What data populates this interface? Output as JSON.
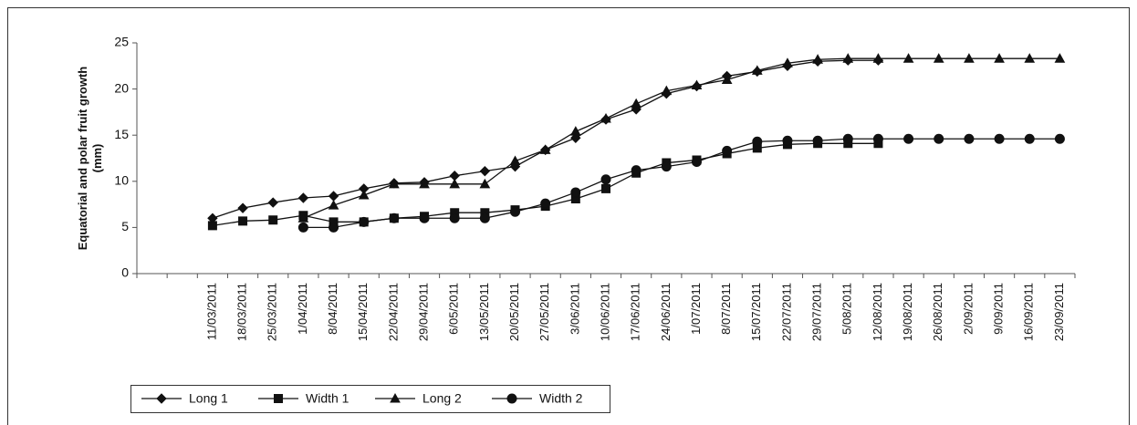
{
  "chart_data": {
    "type": "line",
    "y_label": "Equatorial and polar fruit growth (mm)",
    "categories": [
      null,
      null,
      "11/03/2011",
      "18/03/2011",
      "25/03/2011",
      "1/04/2011",
      "8/04/2011",
      "15/04/2011",
      "22/04/2011",
      "29/04/2011",
      "6/05/2011",
      "13/05/2011",
      "20/05/2011",
      "27/05/2011",
      "3/06/2011",
      "10/06/2011",
      "17/06/2011",
      "24/06/2011",
      "1/07/2011",
      "8/07/2011",
      "15/07/2011",
      "22/07/2011",
      "29/07/2011",
      "5/08/2011",
      "12/08/2011",
      "19/08/2011",
      "26/08/2011",
      "2/09/2011",
      "9/09/2011",
      "16/09/2011",
      "23/09/2011"
    ],
    "series": [
      {
        "name": "Long 1",
        "color": "#111111",
        "marker": "diamond",
        "values": [
          null,
          null,
          6,
          7.1,
          7.7,
          8.2,
          8.4,
          9.2,
          9.8,
          9.9,
          10.6,
          11.1,
          11.6,
          13.4,
          14.7,
          16.7,
          17.8,
          19.5,
          20.3,
          21.4,
          21.9,
          22.5,
          23.0,
          23.1,
          23.1,
          null,
          null,
          null,
          null,
          null,
          null
        ]
      },
      {
        "name": "Width 1",
        "color": "#111111",
        "marker": "square",
        "values": [
          null,
          null,
          5.2,
          5.7,
          5.8,
          6.3,
          5.6,
          5.6,
          6.0,
          6.2,
          6.6,
          6.6,
          6.9,
          7.3,
          8.1,
          9.2,
          10.9,
          12.0,
          12.3,
          13.0,
          13.6,
          14.0,
          14.1,
          14.1,
          14.1,
          null,
          null,
          null,
          null,
          null,
          null
        ]
      },
      {
        "name": "Long 2",
        "color": "#111111",
        "marker": "triangle",
        "values": [
          null,
          null,
          null,
          null,
          null,
          6.0,
          7.4,
          8.5,
          9.7,
          9.7,
          9.7,
          9.7,
          12.2,
          13.4,
          15.4,
          16.8,
          18.4,
          19.8,
          20.4,
          21.0,
          22.0,
          22.8,
          23.2,
          23.3,
          23.3,
          23.3,
          23.3,
          23.3,
          23.3,
          23.3,
          23.3
        ]
      },
      {
        "name": "Width 2",
        "color": "#111111",
        "marker": "circle",
        "values": [
          null,
          null,
          null,
          null,
          null,
          5.0,
          5.0,
          5.6,
          6.0,
          6.0,
          6.0,
          6.0,
          6.7,
          7.6,
          8.8,
          10.2,
          11.2,
          11.6,
          12.1,
          13.3,
          14.3,
          14.4,
          14.4,
          14.6,
          14.6,
          14.6,
          14.6,
          14.6,
          14.6,
          14.6,
          14.6
        ]
      }
    ],
    "ylim": [
      0,
      25
    ],
    "yticks": [
      0,
      5,
      10,
      15,
      20,
      25
    ],
    "grid": false,
    "legend": "bottom-left"
  }
}
